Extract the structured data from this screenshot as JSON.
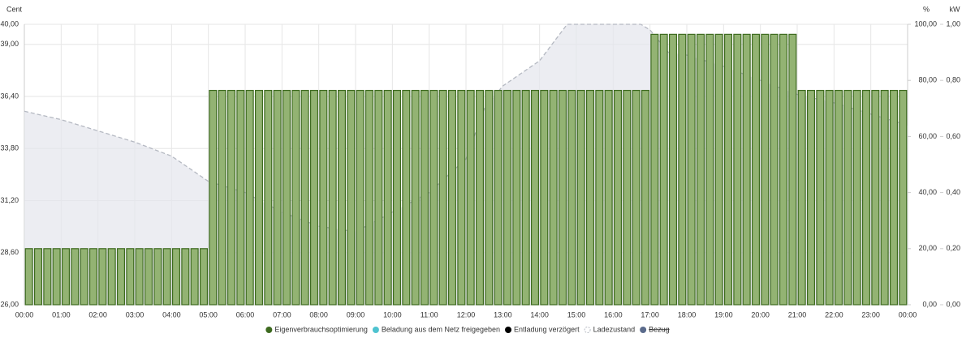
{
  "chart_data": {
    "type": "bar",
    "y_label": "Cent",
    "y2_label": "%",
    "y3_label": "kW",
    "xlim": [
      0,
      24
    ],
    "xticks": [
      {
        "value": 0,
        "label": "00:00"
      },
      {
        "value": 1,
        "label": "01:00"
      },
      {
        "value": 2,
        "label": "02:00"
      },
      {
        "value": 3,
        "label": "03:00"
      },
      {
        "value": 4,
        "label": "04:00"
      },
      {
        "value": 5,
        "label": "05:00"
      },
      {
        "value": 6,
        "label": "06:00"
      },
      {
        "value": 7,
        "label": "07:00"
      },
      {
        "value": 8,
        "label": "08:00"
      },
      {
        "value": 9,
        "label": "09:00"
      },
      {
        "value": 10,
        "label": "10:00"
      },
      {
        "value": 11,
        "label": "11:00"
      },
      {
        "value": 12,
        "label": "12:00"
      },
      {
        "value": 13,
        "label": "13:00"
      },
      {
        "value": 14,
        "label": "14:00"
      },
      {
        "value": 15,
        "label": "15:00"
      },
      {
        "value": 16,
        "label": "16:00"
      },
      {
        "value": 17,
        "label": "17:00"
      },
      {
        "value": 18,
        "label": "18:00"
      },
      {
        "value": 19,
        "label": "19:00"
      },
      {
        "value": 20,
        "label": "20:00"
      },
      {
        "value": 21,
        "label": "21:00"
      },
      {
        "value": 22,
        "label": "22:00"
      },
      {
        "value": 23,
        "label": "23:00"
      },
      {
        "value": 24,
        "label": "00:00"
      }
    ],
    "ylim": [
      26,
      40
    ],
    "yticks": [
      {
        "value": 26,
        "label": "26,00"
      },
      {
        "value": 28.6,
        "label": "28,60"
      },
      {
        "value": 31.2,
        "label": "31,20"
      },
      {
        "value": 33.8,
        "label": "33,80"
      },
      {
        "value": 36.4,
        "label": "36,40"
      },
      {
        "value": 39,
        "label": "39,00"
      },
      {
        "value": 40,
        "label": "40,00"
      }
    ],
    "y2lim": [
      0,
      100
    ],
    "y2ticks": [
      {
        "value": 0,
        "label": "0,00"
      },
      {
        "value": 20,
        "label": "20,00"
      },
      {
        "value": 40,
        "label": "40,00"
      },
      {
        "value": 60,
        "label": "60,00"
      },
      {
        "value": 80,
        "label": "80,00"
      },
      {
        "value": 100,
        "label": "100,00"
      }
    ],
    "y3lim": [
      0,
      1
    ],
    "y3ticks": [
      {
        "value": 0,
        "label": "0,00"
      },
      {
        "value": 0.2,
        "label": "0,20"
      },
      {
        "value": 0.4,
        "label": "0,40"
      },
      {
        "value": 0.6,
        "label": "0,60"
      },
      {
        "value": 0.8,
        "label": "0,80"
      },
      {
        "value": 1,
        "label": "1,00"
      }
    ],
    "grid": true,
    "series": [
      {
        "name": "Eigenverbrauchsoptimierung",
        "type": "bar",
        "color": "#3d6a1f",
        "fill": "#93b373",
        "x": [
          0,
          0.25,
          0.5,
          0.75,
          1,
          1.25,
          1.5,
          1.75,
          2,
          2.25,
          2.5,
          2.75,
          3,
          3.25,
          3.5,
          3.75,
          4,
          4.25,
          4.5,
          4.75,
          5,
          5.25,
          5.5,
          5.75,
          6,
          6.25,
          6.5,
          6.75,
          7,
          7.25,
          7.5,
          7.75,
          8,
          8.25,
          8.5,
          8.75,
          9,
          9.25,
          9.5,
          9.75,
          10,
          10.25,
          10.5,
          10.75,
          11,
          11.25,
          11.5,
          11.75,
          12,
          12.25,
          12.5,
          12.75,
          13,
          13.25,
          13.5,
          13.75,
          14,
          14.25,
          14.5,
          14.75,
          15,
          15.25,
          15.5,
          15.75,
          16,
          16.25,
          16.5,
          16.75,
          17,
          17.25,
          17.5,
          17.75,
          18,
          18.25,
          18.5,
          18.75,
          19,
          19.25,
          19.5,
          19.75,
          20,
          20.25,
          20.5,
          20.75,
          21,
          21.25,
          21.5,
          21.75,
          22,
          22.25,
          22.5,
          22.75,
          23,
          23.25,
          23.5,
          23.75
        ],
        "values": [
          28.8,
          28.8,
          28.8,
          28.8,
          28.8,
          28.8,
          28.8,
          28.8,
          28.8,
          28.8,
          28.8,
          28.8,
          28.8,
          28.8,
          28.8,
          28.8,
          28.8,
          28.8,
          28.8,
          28.8,
          36.7,
          36.7,
          36.7,
          36.7,
          36.7,
          36.7,
          36.7,
          36.7,
          36.7,
          36.7,
          36.7,
          36.7,
          36.7,
          36.7,
          36.7,
          36.7,
          36.7,
          36.7,
          36.7,
          36.7,
          36.7,
          36.7,
          36.7,
          36.7,
          36.7,
          36.7,
          36.7,
          36.7,
          36.7,
          36.7,
          36.7,
          36.7,
          36.7,
          36.7,
          36.7,
          36.7,
          36.7,
          36.7,
          36.7,
          36.7,
          36.7,
          36.7,
          36.7,
          36.7,
          36.7,
          36.7,
          36.7,
          36.7,
          39.5,
          39.5,
          39.5,
          39.5,
          39.5,
          39.5,
          39.5,
          39.5,
          39.5,
          39.5,
          39.5,
          39.5,
          39.5,
          39.5,
          39.5,
          39.5,
          36.7,
          36.7,
          36.7,
          36.7,
          36.7,
          36.7,
          36.7,
          36.7,
          36.7,
          36.7,
          36.7,
          36.7
        ]
      },
      {
        "name": "Beladung aus dem Netz freigegeben",
        "type": "legend",
        "color": "#4fc3d0"
      },
      {
        "name": "Entladung verzögert",
        "type": "legend",
        "color": "#000000"
      },
      {
        "name": "Ladezustand",
        "type": "area",
        "axis": "y2",
        "color": "#b5b9c2",
        "fill": "#e4e6ec",
        "x": [
          0,
          1,
          2,
          3,
          4,
          5,
          6,
          7,
          8,
          9,
          10,
          11,
          12,
          12.5,
          13,
          14,
          14.75,
          15,
          16,
          16.75,
          17,
          17.5,
          18,
          19,
          20,
          21,
          22,
          23,
          24
        ],
        "values": [
          69,
          66,
          62,
          58,
          53,
          44,
          40,
          33,
          28,
          26,
          33,
          40,
          52,
          70,
          78,
          87,
          100,
          100,
          100,
          100,
          98,
          90,
          89,
          85,
          80,
          75,
          72,
          68,
          64
        ]
      },
      {
        "name": "Bezug",
        "type": "legend",
        "color": "#5b6b8c",
        "hidden": true
      }
    ]
  }
}
